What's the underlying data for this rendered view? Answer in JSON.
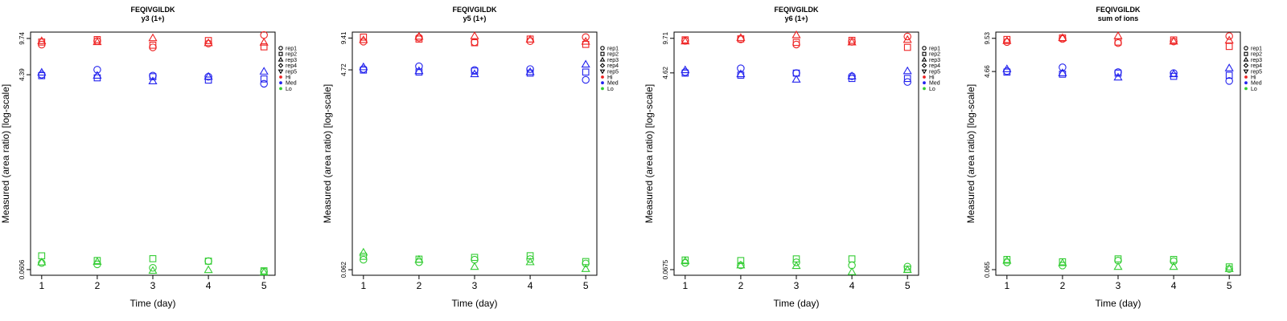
{
  "chart_data": [
    {
      "type": "scatter",
      "title": "FEQIVGILDK",
      "subtitle": "y3 (1+)",
      "xlabel": "Time (day)",
      "ylabel": "Measured (area ratio) [log-scale]",
      "ytick_labels": [
        "0.0606",
        "4.39",
        "9.74"
      ],
      "xtick_labels": [
        "1",
        "2",
        "3",
        "4",
        "5"
      ],
      "legend_labels": [
        "rep1",
        "rep2",
        "rep3",
        "rep4",
        "rep5",
        "Hi",
        "Med",
        "Lo"
      ],
      "legend_position": "right",
      "yscale": "log",
      "ylim": [
        0.0535,
        11.2
      ],
      "xlim": [
        0.8,
        5.2
      ],
      "colors": {
        "Hi": "#ee2222",
        "Med": "#2222ee",
        "Lo": "#33cc33"
      },
      "series": [
        {
          "level": "Hi",
          "rep": "rep1",
          "x": [
            1,
            2,
            3,
            4,
            5
          ],
          "y": [
            8.5,
            9.2,
            8.0,
            8.7,
            10.5
          ]
        },
        {
          "level": "Hi",
          "rep": "rep2",
          "x": [
            1,
            2,
            3,
            4,
            5
          ],
          "y": [
            9.0,
            9.5,
            8.4,
            9.3,
            8.1
          ]
        },
        {
          "level": "Hi",
          "rep": "rep3",
          "x": [
            1,
            2,
            3,
            4,
            5
          ],
          "y": [
            9.2,
            9.0,
            9.8,
            8.8,
            8.9
          ]
        },
        {
          "level": "Med",
          "rep": "rep1",
          "x": [
            1,
            2,
            3,
            4,
            5
          ],
          "y": [
            4.4,
            4.9,
            4.3,
            4.2,
            3.6
          ]
        },
        {
          "level": "Med",
          "rep": "rep2",
          "x": [
            1,
            2,
            3,
            4,
            5
          ],
          "y": [
            4.3,
            4.1,
            4.2,
            3.9,
            4.0
          ]
        },
        {
          "level": "Med",
          "rep": "rep3",
          "x": [
            1,
            2,
            3,
            4,
            5
          ],
          "y": [
            4.6,
            4.3,
            3.8,
            4.2,
            4.7
          ]
        },
        {
          "level": "Lo",
          "rep": "rep1",
          "x": [
            1,
            2,
            3,
            4,
            5
          ],
          "y": [
            0.07,
            0.068,
            0.063,
            0.073,
            0.058
          ]
        },
        {
          "level": "Lo",
          "rep": "rep2",
          "x": [
            1,
            2,
            3,
            4,
            5
          ],
          "y": [
            0.082,
            0.074,
            0.077,
            0.073,
            0.059
          ]
        },
        {
          "level": "Lo",
          "rep": "rep3",
          "x": [
            1,
            2,
            3,
            4,
            5
          ],
          "y": [
            0.071,
            0.072,
            0.059,
            0.06,
            0.057
          ]
        }
      ]
    },
    {
      "type": "scatter",
      "title": "FEQIVGILDK",
      "subtitle": "y5 (1+)",
      "xlabel": "Time (day)",
      "ylabel": "Measured (area ratio) [log-scale]",
      "ytick_labels": [
        "0.062",
        "4.72",
        "9.41"
      ],
      "xtick_labels": [
        "1",
        "2",
        "3",
        "4",
        "5"
      ],
      "legend_labels": [
        "rep1",
        "rep2",
        "rep3",
        "rep4",
        "rep5",
        "Hi",
        "Med",
        "Lo"
      ],
      "legend_position": "right",
      "yscale": "log",
      "ylim": [
        0.055,
        10.7
      ],
      "xlim": [
        0.8,
        5.2
      ],
      "colors": {
        "Hi": "#ee2222",
        "Med": "#2222ee",
        "Lo": "#33cc33"
      },
      "series": [
        {
          "level": "Hi",
          "rep": "rep1",
          "x": [
            1,
            2,
            3,
            4,
            5
          ],
          "y": [
            8.7,
            9.5,
            8.6,
            8.8,
            9.6
          ]
        },
        {
          "level": "Hi",
          "rep": "rep2",
          "x": [
            1,
            2,
            3,
            4,
            5
          ],
          "y": [
            9.6,
            9.2,
            8.5,
            9.2,
            8.2
          ]
        },
        {
          "level": "Hi",
          "rep": "rep3",
          "x": [
            1,
            2,
            3,
            4,
            5
          ],
          "y": [
            9.0,
            9.7,
            9.8,
            9.1,
            8.7
          ]
        },
        {
          "level": "Med",
          "rep": "rep1",
          "x": [
            1,
            2,
            3,
            4,
            5
          ],
          "y": [
            4.8,
            5.1,
            4.7,
            4.8,
            3.8
          ]
        },
        {
          "level": "Med",
          "rep": "rep2",
          "x": [
            1,
            2,
            3,
            4,
            5
          ],
          "y": [
            4.7,
            4.5,
            4.6,
            4.4,
            4.5
          ]
        },
        {
          "level": "Med",
          "rep": "rep3",
          "x": [
            1,
            2,
            3,
            4,
            5
          ],
          "y": [
            5.0,
            4.6,
            4.3,
            4.5,
            5.3
          ]
        },
        {
          "level": "Lo",
          "rep": "rep1",
          "x": [
            1,
            2,
            3,
            4,
            5
          ],
          "y": [
            0.077,
            0.073,
            0.077,
            0.078,
            0.071
          ]
        },
        {
          "level": "Lo",
          "rep": "rep2",
          "x": [
            1,
            2,
            3,
            4,
            5
          ],
          "y": [
            0.083,
            0.078,
            0.081,
            0.084,
            0.074
          ]
        },
        {
          "level": "Lo",
          "rep": "rep3",
          "x": [
            1,
            2,
            3,
            4,
            5
          ],
          "y": [
            0.09,
            0.077,
            0.066,
            0.073,
            0.063
          ]
        }
      ]
    },
    {
      "type": "scatter",
      "title": "FEQIVGILDK",
      "subtitle": "y6 (1+)",
      "xlabel": "Time (day)",
      "ylabel": "Measured (area ratio) [log-scale]",
      "ytick_labels": [
        "0.0675",
        "4.62",
        "9.71"
      ],
      "xtick_labels": [
        "1",
        "2",
        "3",
        "4",
        "5"
      ],
      "legend_labels": [
        "rep1",
        "rep2",
        "rep3",
        "rep4",
        "rep5",
        "Hi",
        "Med",
        "Lo"
      ],
      "legend_position": "right",
      "yscale": "log",
      "ylim": [
        0.0598,
        11.1
      ],
      "xlim": [
        0.8,
        5.2
      ],
      "colors": {
        "Hi": "#ee2222",
        "Med": "#2222ee",
        "Lo": "#33cc33"
      },
      "series": [
        {
          "level": "Hi",
          "rep": "rep1",
          "x": [
            1,
            2,
            3,
            4,
            5
          ],
          "y": [
            9.2,
            9.5,
            8.5,
            9.0,
            10.1
          ]
        },
        {
          "level": "Hi",
          "rep": "rep2",
          "x": [
            1,
            2,
            3,
            4,
            5
          ],
          "y": [
            9.4,
            9.6,
            8.9,
            9.3,
            8.0
          ]
        },
        {
          "level": "Hi",
          "rep": "rep3",
          "x": [
            1,
            2,
            3,
            4,
            5
          ],
          "y": [
            9.1,
            9.8,
            10.4,
            8.9,
            9.4
          ]
        },
        {
          "level": "Med",
          "rep": "rep1",
          "x": [
            1,
            2,
            3,
            4,
            5
          ],
          "y": [
            4.7,
            5.1,
            4.6,
            4.3,
            3.8
          ]
        },
        {
          "level": "Med",
          "rep": "rep2",
          "x": [
            1,
            2,
            3,
            4,
            5
          ],
          "y": [
            4.6,
            4.4,
            4.6,
            4.1,
            4.1
          ]
        },
        {
          "level": "Med",
          "rep": "rep3",
          "x": [
            1,
            2,
            3,
            4,
            5
          ],
          "y": [
            4.9,
            4.5,
            4.0,
            4.3,
            4.8
          ]
        },
        {
          "level": "Lo",
          "rep": "rep1",
          "x": [
            1,
            2,
            3,
            4,
            5
          ],
          "y": [
            0.078,
            0.074,
            0.079,
            0.074,
            0.072
          ]
        },
        {
          "level": "Lo",
          "rep": "rep2",
          "x": [
            1,
            2,
            3,
            4,
            5
          ],
          "y": [
            0.083,
            0.082,
            0.085,
            0.085,
            0.068
          ]
        },
        {
          "level": "Lo",
          "rep": "rep3",
          "x": [
            1,
            2,
            3,
            4,
            5
          ],
          "y": [
            0.081,
            0.074,
            0.073,
            0.064,
            0.067
          ]
        }
      ]
    },
    {
      "type": "scatter",
      "title": "FEQIVGILDK",
      "subtitle": "sum of ions",
      "xlabel": "Time (day)",
      "ylabel": "Measured (area ratio) [log-scale]",
      "ytick_labels": [
        "0.065",
        "4.66",
        "9.53"
      ],
      "xtick_labels": [
        "1",
        "2",
        "3",
        "4",
        "5"
      ],
      "legend_labels": [
        "rep1",
        "rep2",
        "rep3",
        "rep4",
        "rep5",
        "Hi",
        "Med",
        "Lo"
      ],
      "legend_position": "right",
      "yscale": "log",
      "ylim": [
        0.0576,
        10.9
      ],
      "xlim": [
        0.8,
        5.2
      ],
      "colors": {
        "Hi": "#ee2222",
        "Med": "#2222ee",
        "Lo": "#33cc33"
      },
      "series": [
        {
          "level": "Hi",
          "rep": "rep1",
          "x": [
            1,
            2,
            3,
            4,
            5
          ],
          "y": [
            8.8,
            9.4,
            8.6,
            8.9,
            10.0
          ]
        },
        {
          "level": "Hi",
          "rep": "rep2",
          "x": [
            1,
            2,
            3,
            4,
            5
          ],
          "y": [
            9.3,
            9.6,
            8.8,
            9.2,
            8.0
          ]
        },
        {
          "level": "Hi",
          "rep": "rep3",
          "x": [
            1,
            2,
            3,
            4,
            5
          ],
          "y": [
            9.0,
            9.6,
            10.0,
            8.9,
            9.1
          ]
        },
        {
          "level": "Med",
          "rep": "rep1",
          "x": [
            1,
            2,
            3,
            4,
            5
          ],
          "y": [
            4.7,
            5.1,
            4.6,
            4.5,
            3.8
          ]
        },
        {
          "level": "Med",
          "rep": "rep2",
          "x": [
            1,
            2,
            3,
            4,
            5
          ],
          "y": [
            4.6,
            4.4,
            4.5,
            4.2,
            4.3
          ]
        },
        {
          "level": "Med",
          "rep": "rep3",
          "x": [
            1,
            2,
            3,
            4,
            5
          ],
          "y": [
            4.9,
            4.5,
            4.1,
            4.4,
            5.0
          ]
        },
        {
          "level": "Lo",
          "rep": "rep1",
          "x": [
            1,
            2,
            3,
            4,
            5
          ],
          "y": [
            0.076,
            0.071,
            0.079,
            0.078,
            0.066
          ]
        },
        {
          "level": "Lo",
          "rep": "rep2",
          "x": [
            1,
            2,
            3,
            4,
            5
          ],
          "y": [
            0.081,
            0.077,
            0.082,
            0.081,
            0.069
          ]
        },
        {
          "level": "Lo",
          "rep": "rep3",
          "x": [
            1,
            2,
            3,
            4,
            5
          ],
          "y": [
            0.079,
            0.075,
            0.069,
            0.069,
            0.066
          ]
        }
      ]
    }
  ]
}
